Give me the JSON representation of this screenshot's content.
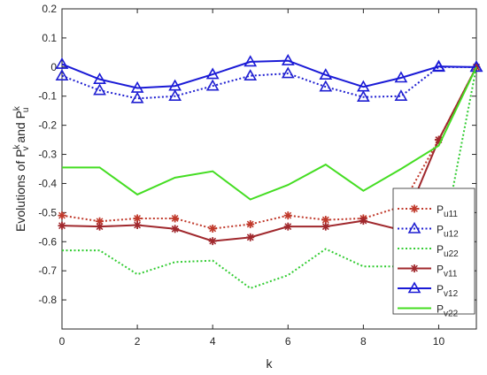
{
  "chart_data": {
    "type": "line",
    "xlabel": "k",
    "ylabel": "Evolutions of P_v^k and P_u^k",
    "ylabel_parts": {
      "prefix": "Evolutions of P",
      "sup1": "k",
      "sub1": "v",
      "mid": " and P",
      "sup2": "k",
      "sub2": "u"
    },
    "xlim": [
      0,
      11
    ],
    "ylim": [
      -0.9,
      0.2
    ],
    "xticks": [
      "0",
      "2",
      "4",
      "6",
      "8",
      "10"
    ],
    "yticks": [
      "0.2",
      "0.1",
      "0",
      "-0.1",
      "-0.2",
      "-0.3",
      "-0.4",
      "-0.5",
      "-0.6",
      "-0.7",
      "-0.8"
    ],
    "grid": false,
    "legend_position": "right",
    "x": [
      0,
      1,
      2,
      3,
      4,
      5,
      6,
      7,
      8,
      9,
      10,
      11
    ],
    "series": [
      {
        "name": "u11",
        "label_base": "P",
        "label_sub": "u11",
        "color": "#c0392b",
        "style": "dotted",
        "marker": "star",
        "values": [
          -0.51,
          -0.53,
          -0.52,
          -0.52,
          -0.555,
          -0.54,
          -0.51,
          -0.525,
          -0.52,
          -0.48,
          -0.25,
          0.0
        ]
      },
      {
        "name": "u12",
        "label_base": "P",
        "label_sub": "u12",
        "color": "#1f1fd1",
        "style": "dotted",
        "marker": "triangle",
        "values": [
          -0.03,
          -0.08,
          -0.108,
          -0.1,
          -0.065,
          -0.03,
          -0.022,
          -0.068,
          -0.103,
          -0.1,
          0.0,
          0.0
        ]
      },
      {
        "name": "u22",
        "label_base": "P",
        "label_sub": "u22",
        "color": "#33cc33",
        "style": "dotted",
        "marker": "none",
        "values": [
          -0.63,
          -0.63,
          -0.712,
          -0.67,
          -0.665,
          -0.76,
          -0.715,
          -0.625,
          -0.685,
          -0.685,
          -0.67,
          0.0
        ]
      },
      {
        "name": "v11",
        "label_base": "P",
        "label_sub": "v11",
        "color": "#a0282d",
        "style": "solid",
        "marker": "star",
        "values": [
          -0.545,
          -0.548,
          -0.543,
          -0.556,
          -0.598,
          -0.585,
          -0.548,
          -0.548,
          -0.528,
          -0.56,
          -0.25,
          0.0
        ]
      },
      {
        "name": "v12",
        "label_base": "P",
        "label_sub": "v12",
        "color": "#1a1ad6",
        "style": "solid",
        "marker": "triangle",
        "values": [
          0.01,
          -0.042,
          -0.072,
          -0.065,
          -0.025,
          0.018,
          0.022,
          -0.027,
          -0.068,
          -0.037,
          0.002,
          0.0
        ]
      },
      {
        "name": "v22",
        "label_base": "P",
        "label_sub": "v22",
        "color": "#44dd22",
        "style": "solid",
        "marker": "none",
        "values": [
          -0.345,
          -0.345,
          -0.438,
          -0.38,
          -0.358,
          -0.455,
          -0.405,
          -0.335,
          -0.425,
          -0.35,
          -0.27,
          0.0
        ]
      }
    ]
  }
}
